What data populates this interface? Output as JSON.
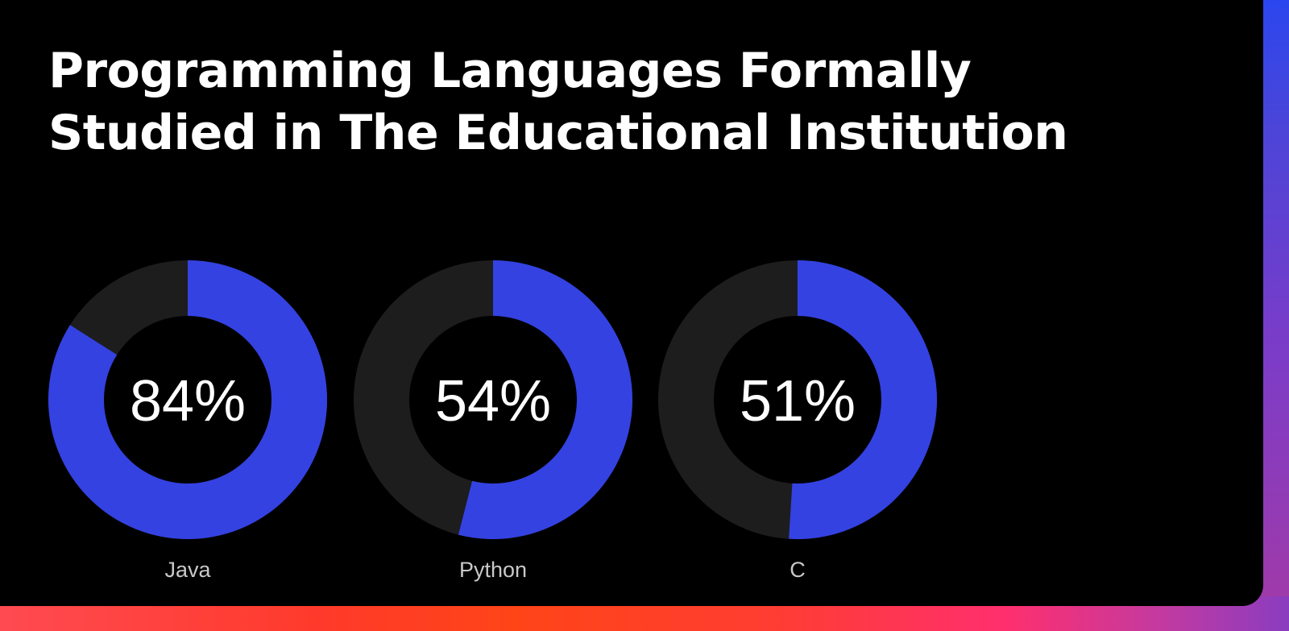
{
  "colors": {
    "filled": "#3442e2",
    "track": "#1d1d1d",
    "background": "#000000",
    "text": "#ffffff",
    "label": "#c8c8c8"
  },
  "chart_data": {
    "type": "pie",
    "variant": "donut-progress",
    "title": "Programming Languages Formally Studied in The Educational Institution",
    "unit": "%",
    "categories": [
      "Java",
      "Python",
      "C"
    ],
    "values": [
      84,
      54,
      51
    ],
    "value_labels": [
      "84%",
      "54%",
      "51%"
    ],
    "range": [
      0,
      100
    ]
  }
}
